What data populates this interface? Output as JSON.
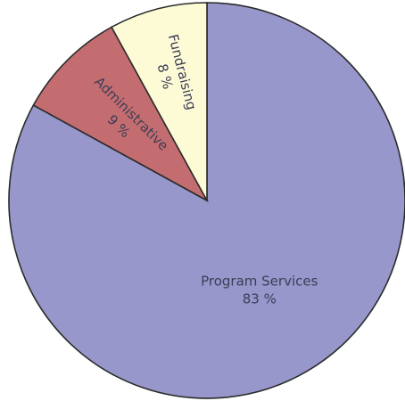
{
  "chart_data": {
    "type": "pie",
    "start_angle_deg": 0,
    "direction": "clockwise",
    "slices": [
      {
        "name": "Program Services",
        "value": 83,
        "pct_label": "83 %",
        "color": "#9797cc"
      },
      {
        "name": "Administrative",
        "value": 9,
        "pct_label": "9 %",
        "color": "#c46d70"
      },
      {
        "name": "Fundraising",
        "value": 8,
        "pct_label": "8 %",
        "color": "#fdfbd6"
      }
    ]
  }
}
